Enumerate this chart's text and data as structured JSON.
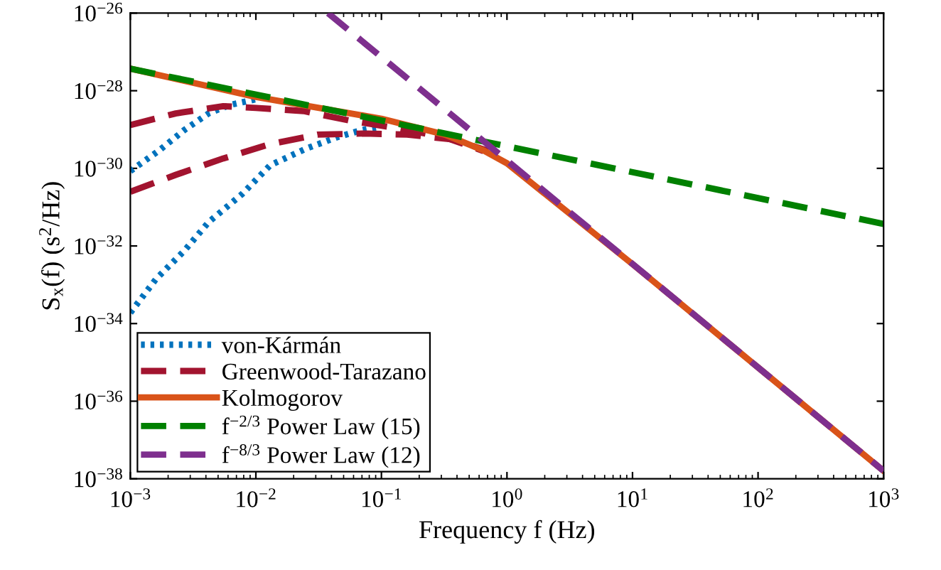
{
  "chart_data": {
    "type": "line",
    "xlabel": "Frequency f (Hz)",
    "ylabel": "S$_{x}$(f) (s$^{2}$/Hz)",
    "log": "xy",
    "grid": false,
    "legend": "bottom left",
    "marker": "none",
    "xlim": [
      0.001,
      1000
    ],
    "ylim": [
      1e-38,
      1e-26
    ],
    "xticks": [
      {
        "value": 0.001,
        "label": "10$^{−3}$"
      },
      {
        "value": 0.01,
        "label": "10$^{−2}$"
      },
      {
        "value": 0.1,
        "label": "10$^{−1}$"
      },
      {
        "value": 1,
        "label": "10$^{0}$"
      },
      {
        "value": 10,
        "label": "10$^{1}$"
      },
      {
        "value": 100,
        "label": "10$^{2}$"
      },
      {
        "value": 1000,
        "label": "10$^{3}$"
      }
    ],
    "yticks": [
      {
        "value": 1e-38,
        "label": "10$^{−38}$"
      },
      {
        "value": 1e-36,
        "label": "10$^{−36}$"
      },
      {
        "value": 1e-34,
        "label": "10$^{−34}$"
      },
      {
        "value": 1e-32,
        "label": "10$^{−32}$"
      },
      {
        "value": 1e-30,
        "label": "10$^{−30}$"
      },
      {
        "value": 1e-28,
        "label": "10$^{−28}$"
      },
      {
        "value": 1e-26,
        "label": "10$^{−26}$"
      }
    ],
    "series": [
      {
        "name": "von-Kármán",
        "color": "#0072bd",
        "line_style": "dotted",
        "x": [
          0.001,
          0.0017,
          0.0027,
          0.0042,
          0.0062,
          0.01
        ],
        "values": [
          8.5e-31,
          2.9e-30,
          9.8e-30,
          2.6e-29,
          4.3e-29,
          6e-29
        ]
      },
      {
        "color": "#0072bd",
        "line_style": "dotted",
        "x": [
          0.001,
          0.0016,
          0.0027,
          0.0042,
          0.0078,
          0.013,
          0.025,
          0.044,
          0.071,
          0.1
        ],
        "values": [
          1.9e-34,
          1.4e-33,
          7.6e-33,
          4.1e-32,
          2.2e-31,
          1.2e-30,
          3.2e-30,
          6.3e-30,
          9.8e-30,
          1.2e-29
        ]
      },
      {
        "name": "Greenwood-Tarazano",
        "color": "#a2142f",
        "line_style": "dashed",
        "x": [
          0.001,
          0.0023,
          0.0055,
          0.01,
          0.024,
          0.056,
          0.13,
          0.32,
          0.65
        ],
        "values": [
          1.3e-29,
          2.6e-29,
          4e-29,
          3.6e-29,
          3e-29,
          1.7e-29,
          1.1e-29,
          6.3e-30,
          2.8e-30
        ]
      },
      {
        "color": "#a2142f",
        "line_style": "dashed",
        "x": [
          0.001,
          0.0023,
          0.0055,
          0.013,
          0.031,
          0.074,
          0.16,
          0.38,
          0.71
        ],
        "values": [
          2.5e-31,
          6.8e-31,
          1.8e-30,
          4.2e-30,
          7.4e-30,
          7.9e-30,
          7.4e-30,
          5.5e-30,
          2.8e-30
        ]
      },
      {
        "name": "Kolmogorov",
        "color": "#d95319",
        "line_style": "solid",
        "x": [
          0.001,
          0.01,
          0.1,
          0.32,
          0.65,
          1,
          10,
          100,
          1000
        ],
        "values": [
          3.7e-28,
          6.9e-29,
          1.9e-29,
          7.4e-30,
          2.9e-30,
          1.35e-30,
          3.4e-33,
          7.4e-36,
          1.6e-38
        ]
      },
      {
        "name": "f$^{−2/3}$ Power Law (15)",
        "color": "#008000",
        "line_style": "dashed",
        "x": [
          0.001,
          1000
        ],
        "values": [
          3.7e-28,
          3.7e-32
        ]
      },
      {
        "name": "f$^{−8/3}$ Power Law (12)",
        "color": "#7e2f8e",
        "line_style": "dashed",
        "x": [
          0.0376,
          1000
        ],
        "values": [
          1e-26,
          1.6e-38
        ]
      }
    ]
  }
}
